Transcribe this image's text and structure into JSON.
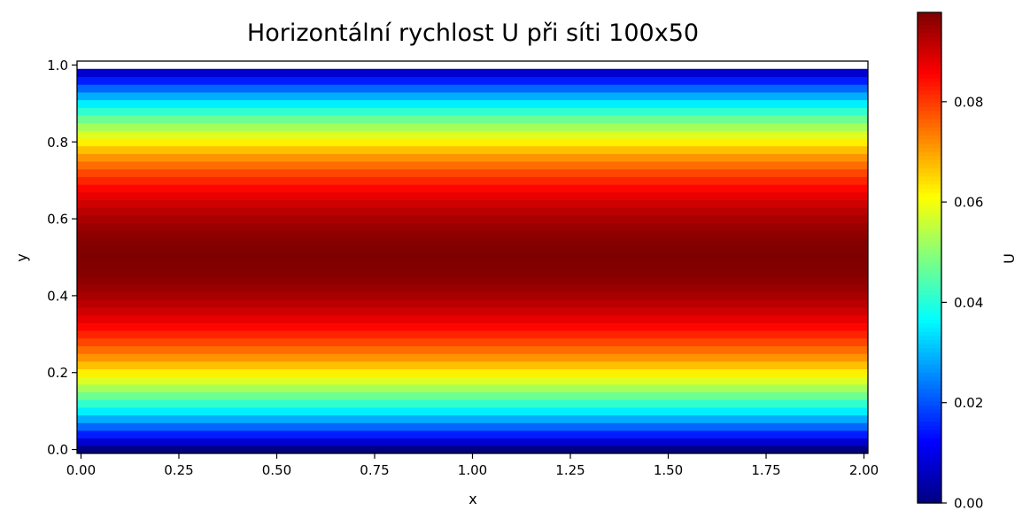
{
  "chart_data": {
    "type": "heatmap",
    "title": "Horizontální rychlost U při síti 100x50",
    "xlabel": "x",
    "ylabel": "y",
    "colorbar_label": "U",
    "colormap": "jet",
    "xlim": [
      -0.0101,
      2.0101
    ],
    "ylim": [
      -0.0102,
      1.0102
    ],
    "vlim": [
      0.0,
      0.0978
    ],
    "x_ticks": [
      0.0,
      0.25,
      0.5,
      0.75,
      1.0,
      1.25,
      1.5,
      1.75,
      2.0
    ],
    "x_tick_labels": [
      "0.00",
      "0.25",
      "0.50",
      "0.75",
      "1.00",
      "1.25",
      "1.50",
      "1.75",
      "2.00"
    ],
    "y_ticks": [
      0.0,
      0.2,
      0.4,
      0.6,
      0.8,
      1.0
    ],
    "y_tick_labels": [
      "0.0",
      "0.2",
      "0.4",
      "0.6",
      "0.8",
      "1.0"
    ],
    "colorbar_ticks": [
      0.0,
      0.02,
      0.04,
      0.06,
      0.08
    ],
    "colorbar_tick_labels": [
      "0.00",
      "0.02",
      "0.04",
      "0.06",
      "0.08"
    ],
    "grid": "off",
    "grid_nx": 100,
    "grid_ny": 50,
    "field_profile": "U(y) = 4·Umax·y·(1 − y), constant along x",
    "u_max": 0.0978
  }
}
